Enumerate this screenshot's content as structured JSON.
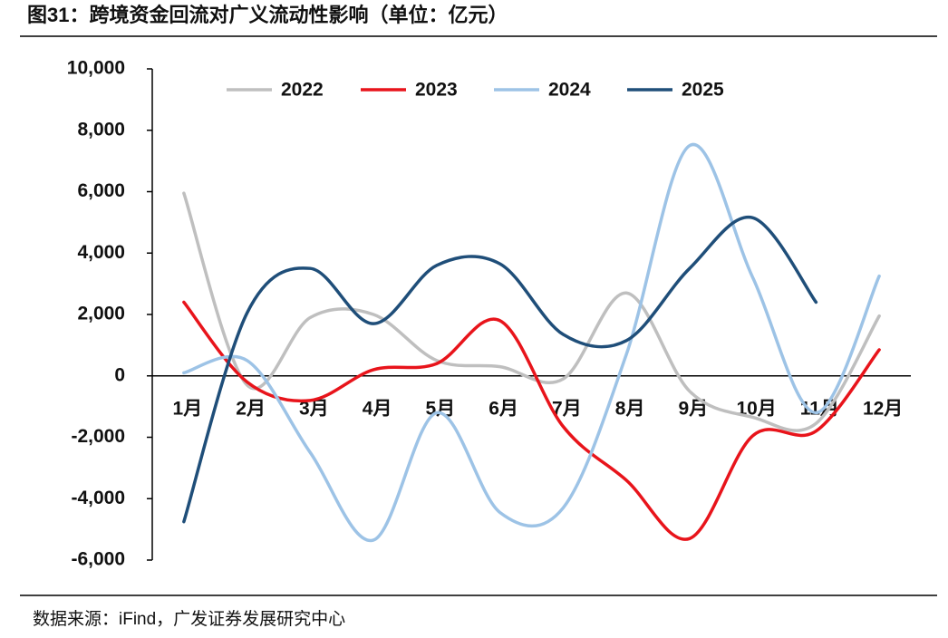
{
  "chart_data": {
    "type": "line",
    "title": "图31：跨境资金回流对广义流动性影响（单位：亿元）",
    "source": "数据来源：iFind，广发证券发展研究中心",
    "categories": [
      "1月",
      "2月",
      "3月",
      "4月",
      "5月",
      "6月",
      "7月",
      "8月",
      "9月",
      "10月",
      "11月",
      "12月"
    ],
    "series": [
      {
        "name": "2022",
        "color": "#bfbfbf",
        "values": [
          5950,
          -300,
          1900,
          2000,
          500,
          300,
          -100,
          2700,
          -500,
          -1350,
          -1550,
          1950
        ]
      },
      {
        "name": "2023",
        "color": "#e8141b",
        "values": [
          2400,
          -200,
          -800,
          200,
          400,
          1800,
          -1650,
          -3400,
          -5300,
          -1950,
          -1800,
          850
        ]
      },
      {
        "name": "2024",
        "color": "#9dc3e6",
        "values": [
          100,
          500,
          -2500,
          -5350,
          -1200,
          -4450,
          -4300,
          700,
          7500,
          3200,
          -1200,
          3250
        ]
      },
      {
        "name": "2025",
        "color": "#1f4e79",
        "values": [
          -4750,
          2050,
          3500,
          1700,
          3600,
          3650,
          1350,
          1150,
          3500,
          5150,
          2400,
          null
        ]
      }
    ],
    "ylim": [
      -6000,
      10000
    ],
    "yticks": [
      {
        "value": -6000,
        "label": "-6,000"
      },
      {
        "value": -4000,
        "label": "-4,000"
      },
      {
        "value": -2000,
        "label": "-2,000"
      },
      0,
      {
        "value": 2000,
        "label": "2,000"
      },
      {
        "value": 4000,
        "label": "4,000"
      },
      {
        "value": 6000,
        "label": "6,000"
      },
      {
        "value": 8000,
        "label": "8,000"
      },
      {
        "value": 10000,
        "label": "10,000"
      }
    ],
    "legend": "top"
  }
}
